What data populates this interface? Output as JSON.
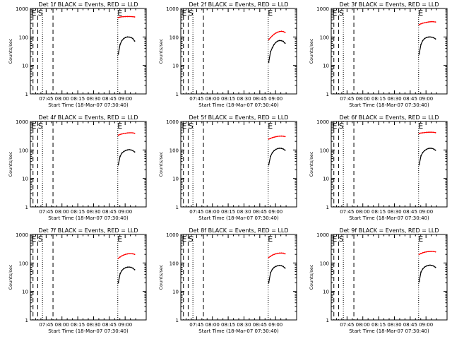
{
  "figure": {
    "background": "#ffffff",
    "axis_color": "#000000",
    "event_color": "#000000",
    "lld_color": "#ff0000"
  },
  "chart_data": [
    {
      "type": "line",
      "title": "Det 1f BLACK = Events, RED = LLD",
      "xlabel": "Start Time (18-Mar-07 07:30:40)",
      "ylabel": "Counts/sec",
      "yscale": "log",
      "ylim": [
        1,
        1000
      ],
      "x_tick_labels": [
        "07:45",
        "08:00",
        "08:15",
        "08:30",
        "08:45",
        "09:00"
      ],
      "y_tick_labels": [
        "1",
        "10",
        "100",
        "1000"
      ],
      "event_markers": [
        "E",
        "S",
        "E"
      ],
      "series": [
        {
          "color": "#000000",
          "values": [
            25,
            55,
            75,
            88,
            96,
            100,
            99,
            96,
            88,
            72
          ]
        },
        {
          "color": "#ff0000",
          "values": [
            480,
            500,
            510,
            515,
            518,
            520,
            520,
            518,
            515,
            505
          ]
        }
      ]
    },
    {
      "type": "line",
      "title": "Det 2f BLACK = Events, RED = LLD",
      "xlabel": "Start Time (18-Mar-07 07:30:40)",
      "ylabel": "Counts/sec",
      "yscale": "log",
      "ylim": [
        1,
        1000
      ],
      "x_tick_labels": [
        "07:45",
        "08:00",
        "08:15",
        "08:30",
        "08:45",
        "09:00"
      ],
      "y_tick_labels": [
        "1",
        "10",
        "100",
        "1000"
      ],
      "event_markers": [
        "E",
        "S",
        "E"
      ],
      "series": [
        {
          "color": "#000000",
          "values": [
            13,
            30,
            42,
            55,
            65,
            72,
            75,
            74,
            70,
            60
          ]
        },
        {
          "color": "#ff0000",
          "values": [
            80,
            95,
            110,
            125,
            138,
            148,
            155,
            158,
            155,
            145
          ]
        }
      ]
    },
    {
      "type": "line",
      "title": "Det 3f BLACK = Events, RED = LLD",
      "xlabel": "Start Time (18-Mar-07 07:30:40)",
      "ylabel": "Counts/sec",
      "yscale": "log",
      "ylim": [
        1,
        1000
      ],
      "x_tick_labels": [
        "07:45",
        "08:00",
        "08:15",
        "08:30",
        "08:45",
        "09:00"
      ],
      "y_tick_labels": [
        "1",
        "10",
        "100",
        "1000"
      ],
      "event_markers": [
        "E",
        "S",
        "E"
      ],
      "series": [
        {
          "color": "#000000",
          "values": [
            25,
            55,
            75,
            88,
            95,
            99,
            100,
            98,
            94,
            85
          ]
        },
        {
          "color": "#ff0000",
          "values": [
            270,
            290,
            305,
            315,
            325,
            335,
            340,
            345,
            342,
            335
          ]
        }
      ]
    },
    {
      "type": "line",
      "title": "Det 4f BLACK = Events, RED = LLD",
      "xlabel": "Start Time (18-Mar-07 07:30:40)",
      "ylabel": "Counts/sec",
      "yscale": "log",
      "ylim": [
        1,
        1000
      ],
      "x_tick_labels": [
        "07:45",
        "08:00",
        "08:15",
        "08:30",
        "08:45",
        "09:00"
      ],
      "y_tick_labels": [
        "1",
        "10",
        "100",
        "1000"
      ],
      "event_markers": [
        "E",
        "S",
        "E"
      ],
      "series": [
        {
          "color": "#000000",
          "values": [
            30,
            60,
            78,
            88,
            95,
            100,
            103,
            100,
            95,
            85
          ]
        },
        {
          "color": "#ff0000",
          "values": [
            330,
            350,
            365,
            375,
            385,
            395,
            400,
            402,
            398,
            385
          ]
        }
      ]
    },
    {
      "type": "line",
      "title": "Det 5f BLACK = Events, RED = LLD",
      "xlabel": "Start Time (18-Mar-07 07:30:40)",
      "ylabel": "Counts/sec",
      "yscale": "log",
      "ylim": [
        1,
        1000
      ],
      "x_tick_labels": [
        "07:45",
        "08:00",
        "08:15",
        "08:30",
        "08:45",
        "09:00"
      ],
      "y_tick_labels": [
        "1",
        "10",
        "100",
        "1000"
      ],
      "event_markers": [
        "E",
        "S",
        "E"
      ],
      "series": [
        {
          "color": "#000000",
          "values": [
            30,
            60,
            80,
            95,
            105,
            112,
            115,
            114,
            108,
            98
          ]
        },
        {
          "color": "#ff0000",
          "values": [
            240,
            255,
            270,
            282,
            292,
            300,
            305,
            307,
            303,
            295
          ]
        }
      ]
    },
    {
      "type": "line",
      "title": "Det 6f BLACK = Events, RED = LLD",
      "xlabel": "Start Time (18-Mar-07 07:30:40)",
      "ylabel": "Counts/sec",
      "yscale": "log",
      "ylim": [
        1,
        1000
      ],
      "x_tick_labels": [
        "07:45",
        "08:00",
        "08:15",
        "08:30",
        "08:45",
        "09:00"
      ],
      "y_tick_labels": [
        "1",
        "10",
        "100",
        "1000"
      ],
      "event_markers": [
        "E",
        "S",
        "E"
      ],
      "series": [
        {
          "color": "#000000",
          "values": [
            30,
            62,
            82,
            95,
            105,
            112,
            115,
            114,
            108,
            98
          ]
        },
        {
          "color": "#ff0000",
          "values": [
            380,
            392,
            400,
            408,
            414,
            418,
            420,
            420,
            416,
            405
          ]
        }
      ]
    },
    {
      "type": "line",
      "title": "Det 7f BLACK = Events, RED = LLD",
      "xlabel": "Start Time (18-Mar-07 07:30:40)",
      "ylabel": "Counts/sec",
      "yscale": "log",
      "ylim": [
        1,
        1000
      ],
      "x_tick_labels": [
        "07:45",
        "08:00",
        "08:15",
        "08:30",
        "08:45",
        "09:00"
      ],
      "y_tick_labels": [
        "1",
        "10",
        "100",
        "1000"
      ],
      "event_markers": [
        "E",
        "S",
        "E"
      ],
      "series": [
        {
          "color": "#000000",
          "values": [
            20,
            42,
            55,
            63,
            68,
            71,
            72,
            70,
            66,
            58
          ]
        },
        {
          "color": "#ff0000",
          "values": [
            145,
            162,
            178,
            190,
            200,
            208,
            212,
            213,
            210,
            200
          ]
        }
      ]
    },
    {
      "type": "line",
      "title": "Det 8f BLACK = Events, RED = LLD",
      "xlabel": "Start Time (18-Mar-07 07:30:40)",
      "ylabel": "Counts/sec",
      "yscale": "log",
      "ylim": [
        1,
        1000
      ],
      "x_tick_labels": [
        "07:45",
        "08:00",
        "08:15",
        "08:30",
        "08:45",
        "09:00"
      ],
      "y_tick_labels": [
        "1",
        "10",
        "100",
        "1000"
      ],
      "event_markers": [
        "E",
        "S",
        "E"
      ],
      "series": [
        {
          "color": "#000000",
          "values": [
            20,
            45,
            60,
            70,
            76,
            80,
            82,
            80,
            75,
            66
          ]
        },
        {
          "color": "#ff0000",
          "values": [
            155,
            172,
            188,
            200,
            210,
            218,
            222,
            223,
            220,
            210
          ]
        }
      ]
    },
    {
      "type": "line",
      "title": "Det 9f BLACK = Events, RED = LLD",
      "xlabel": "Start Time (18-Mar-07 07:30:40)",
      "ylabel": "Counts/sec",
      "yscale": "log",
      "ylim": [
        1,
        1000
      ],
      "x_tick_labels": [
        "07:45",
        "08:00",
        "08:15",
        "08:30",
        "08:45",
        "09:00"
      ],
      "y_tick_labels": [
        "1",
        "10",
        "100",
        "1000"
      ],
      "event_markers": [
        "E",
        "S",
        "E"
      ],
      "series": [
        {
          "color": "#000000",
          "values": [
            22,
            48,
            62,
            72,
            78,
            82,
            84,
            82,
            78,
            70
          ]
        },
        {
          "color": "#ff0000",
          "values": [
            200,
            215,
            228,
            238,
            245,
            250,
            253,
            254,
            251,
            245
          ]
        }
      ]
    }
  ]
}
